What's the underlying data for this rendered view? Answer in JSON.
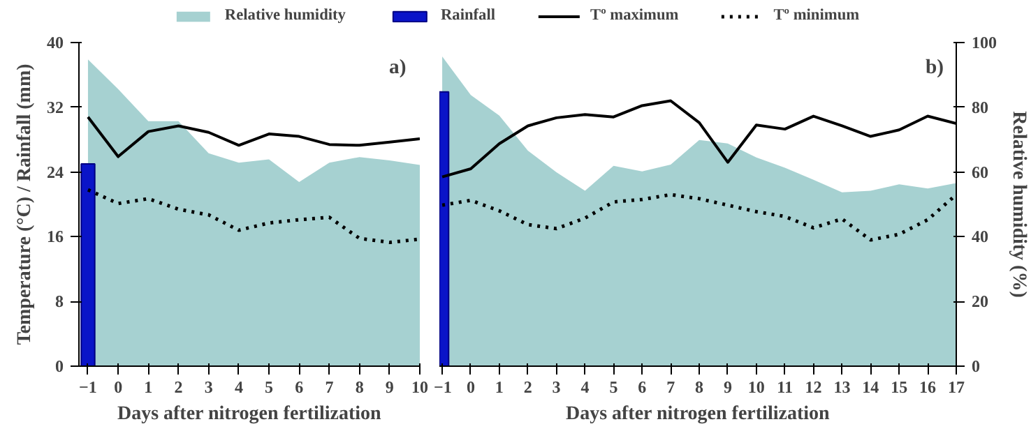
{
  "chart_data": [
    {
      "type": "line",
      "xlabel": "Days after nitrogen fertilization",
      "ylabel": "Temperature (°C) / Rainfall (mm)",
      "annotations": [
        "a)"
      ],
      "x": [
        -1,
        0,
        1,
        2,
        3,
        4,
        5,
        6,
        7,
        8,
        9,
        10
      ],
      "xlim": [
        -1.3,
        10
      ],
      "xticks": [
        -1,
        0,
        1,
        2,
        3,
        4,
        5,
        6,
        7,
        8,
        9,
        10
      ],
      "ylim": [
        0,
        40
      ],
      "yticks": [
        0,
        8,
        16,
        24,
        32,
        40
      ],
      "y2lim": [
        0,
        100
      ],
      "series": [
        {
          "type": "area",
          "axis": "y2",
          "color": "#9ccccc",
          "values": [
            94.8,
            85.6,
            75.7,
            75.7,
            65.8,
            62.9,
            63.9,
            56.9,
            62.9,
            64.6,
            63.6,
            62.2
          ]
        },
        {
          "type": "bar",
          "color": "#0a14c8",
          "x": [
            -1
          ],
          "values": [
            25.0
          ]
        },
        {
          "color": "#000000",
          "line_style": "solid",
          "values": [
            30.8,
            25.9,
            29.0,
            29.7,
            28.9,
            27.3,
            28.7,
            28.4,
            27.4,
            27.3,
            27.7,
            28.1
          ]
        },
        {
          "color": "#000000",
          "line_style": "dotted",
          "values": [
            21.8,
            20.1,
            20.7,
            19.4,
            18.7,
            16.8,
            17.7,
            18.1,
            18.4,
            15.8,
            15.3,
            15.7
          ]
        }
      ]
    },
    {
      "type": "line",
      "xlabel": "Days after nitrogen fertilization",
      "y2label": "Relative humidity (%)",
      "annotations": [
        "b)"
      ],
      "legend": "top",
      "x": [
        -1,
        0,
        1,
        2,
        3,
        4,
        5,
        6,
        7,
        8,
        9,
        10,
        11,
        12,
        13,
        14,
        15,
        16,
        17
      ],
      "xlim": [
        -1.1,
        17
      ],
      "xticks": [
        -1,
        0,
        1,
        2,
        3,
        4,
        5,
        6,
        7,
        8,
        9,
        10,
        11,
        12,
        13,
        14,
        15,
        16,
        17
      ],
      "ylim": [
        0,
        40
      ],
      "y2lim": [
        0,
        100
      ],
      "y2ticks": [
        0,
        20,
        40,
        60,
        80,
        100
      ],
      "series": [
        {
          "name": "Relative humidity",
          "type": "area",
          "axis": "y2",
          "color": "#9ccccc",
          "values": [
            95.7,
            83.8,
            77.4,
            66.6,
            59.9,
            54.2,
            61.9,
            60.2,
            62.3,
            69.9,
            68.8,
            64.5,
            61.3,
            57.6,
            53.7,
            54.2,
            56.2,
            54.9,
            56.6
          ]
        },
        {
          "name": "Rainfall",
          "type": "bar",
          "color": "#0a14c8",
          "x": [
            -1
          ],
          "values": [
            33.9
          ]
        },
        {
          "name": "Tº maximum",
          "color": "#000000",
          "line_style": "solid",
          "values": [
            23.4,
            24.4,
            27.5,
            29.7,
            30.7,
            31.1,
            30.8,
            32.2,
            32.8,
            30.1,
            25.2,
            29.8,
            29.3,
            30.9,
            29.7,
            28.4,
            29.2,
            30.9,
            30.0
          ]
        },
        {
          "name": "Tº minimum",
          "color": "#000000",
          "line_style": "dotted",
          "values": [
            19.9,
            20.5,
            19.2,
            17.5,
            17.0,
            18.3,
            20.3,
            20.6,
            21.2,
            20.7,
            19.9,
            19.1,
            18.5,
            17.1,
            18.2,
            15.6,
            16.3,
            18.1,
            21.2
          ]
        }
      ]
    }
  ]
}
